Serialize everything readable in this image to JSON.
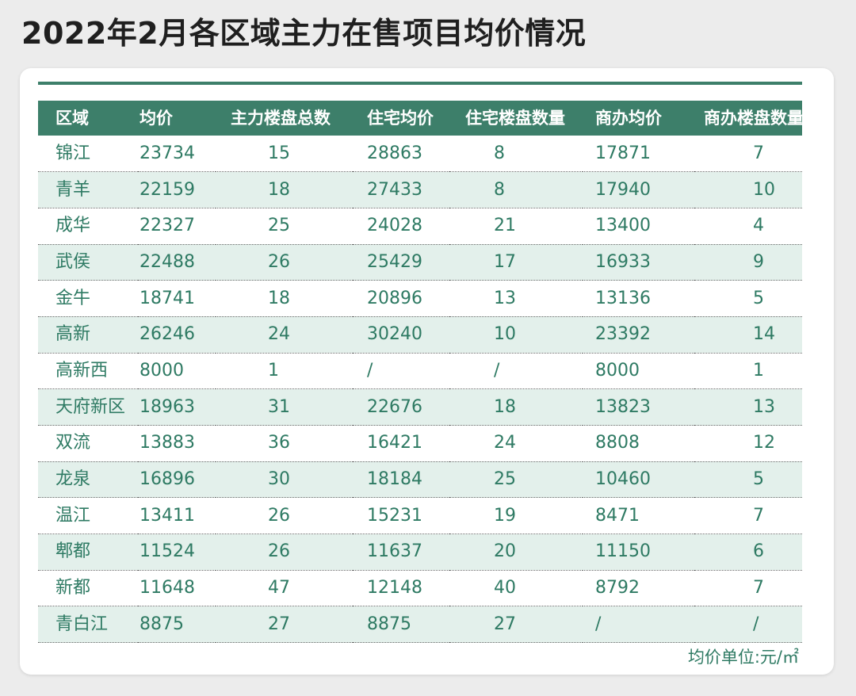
{
  "title": "2022年2月各区域主力在售项目均价情况",
  "unit_note": "均价单位:元/㎡",
  "colors": {
    "header_bg": "#3d7f6a",
    "header_text": "#ffffff",
    "body_text": "#2e7a63",
    "alt_row_bg": "#e3f0eb",
    "row_divider": "#6a6a6a"
  },
  "chart_data": {
    "type": "table",
    "title": "2022年2月各区域主力在售项目均价情况",
    "columns": [
      "区域",
      "均价",
      "主力楼盘总数",
      "住宅均价",
      "住宅楼盘数量",
      "商办均价",
      "商办楼盘数量"
    ],
    "rows": [
      [
        "锦江",
        "23734",
        "15",
        "28863",
        "8",
        "17871",
        "7"
      ],
      [
        "青羊",
        "22159",
        "18",
        "27433",
        "8",
        "17940",
        "10"
      ],
      [
        "成华",
        "22327",
        "25",
        "24028",
        "21",
        "13400",
        "4"
      ],
      [
        "武侯",
        "22488",
        "26",
        "25429",
        "17",
        "16933",
        "9"
      ],
      [
        "金牛",
        "18741",
        "18",
        "20896",
        "13",
        "13136",
        "5"
      ],
      [
        "高新",
        "26246",
        "24",
        "30240",
        "10",
        "23392",
        "14"
      ],
      [
        "高新西",
        "8000",
        "1",
        "/",
        "/",
        "8000",
        "1"
      ],
      [
        "天府新区",
        "18963",
        "31",
        "22676",
        "18",
        "13823",
        "13"
      ],
      [
        "双流",
        "13883",
        "36",
        "16421",
        "24",
        "8808",
        "12"
      ],
      [
        "龙泉",
        "16896",
        "30",
        "18184",
        "25",
        "10460",
        "5"
      ],
      [
        "温江",
        "13411",
        "26",
        "15231",
        "19",
        "8471",
        "7"
      ],
      [
        "郫都",
        "11524",
        "26",
        "11637",
        "20",
        "11150",
        "6"
      ],
      [
        "新都",
        "11648",
        "47",
        "12148",
        "40",
        "8792",
        "7"
      ],
      [
        "青白江",
        "8875",
        "27",
        "8875",
        "27",
        "/",
        "/"
      ]
    ]
  }
}
